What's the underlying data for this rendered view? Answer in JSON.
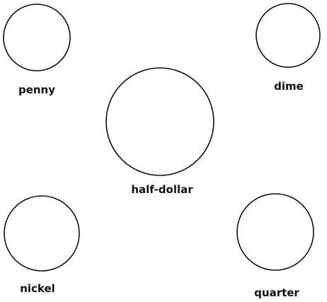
{
  "coins": {
    "penny": {
      "label": "penny"
    },
    "dime": {
      "label": "dime"
    },
    "half_dollar": {
      "label": "half-dollar"
    },
    "nickel": {
      "label": "nickel"
    },
    "quarter": {
      "label": "quarter"
    }
  },
  "colors": {
    "outline": "#111111",
    "background": "#ffffff"
  }
}
